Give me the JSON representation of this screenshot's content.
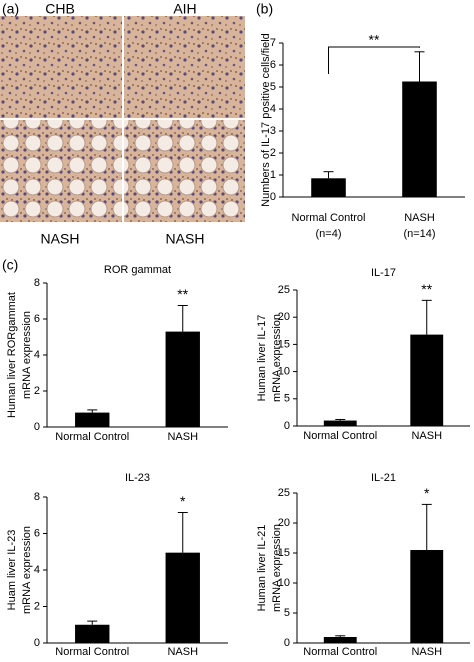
{
  "panel_labels": [
    "(a)",
    "(b)",
    "(c)"
  ],
  "micrographs": {
    "labels": [
      "CHB",
      "AIH",
      "NASH",
      "NASH"
    ]
  },
  "chart_data": [
    {
      "type": "bar",
      "ylabel": [
        "Numbers of IL-17 positive cells/field"
      ],
      "categories": [
        "Normal Control",
        "NASH"
      ],
      "category_notes": [
        "(n=4)",
        "(n=14)"
      ],
      "values": [
        0.85,
        5.25
      ],
      "errors": [
        0.3,
        1.35
      ],
      "significance": "**",
      "color": "#000000",
      "ylim": [
        0,
        7
      ],
      "yticks": [
        0,
        1,
        2,
        3,
        4,
        5,
        6,
        7
      ]
    },
    {
      "type": "bar",
      "title": "ROR gammat",
      "ylabel": [
        "Human liver RORgammat",
        "mRNA expression"
      ],
      "categories": [
        "Normal Control",
        "NASH"
      ],
      "values": [
        0.8,
        5.3
      ],
      "errors": [
        0.15,
        1.45
      ],
      "significance": "**",
      "color": "#000000",
      "ylim": [
        0,
        8
      ],
      "yticks": [
        0,
        2,
        4,
        6,
        8
      ]
    },
    {
      "type": "bar",
      "title": "IL-17",
      "ylabel": [
        "Human liver IL-17",
        "mRNA expression"
      ],
      "categories": [
        "Normal Control",
        "NASH"
      ],
      "values": [
        1.0,
        16.8
      ],
      "errors": [
        0.2,
        6.3
      ],
      "significance": "**",
      "color": "#000000",
      "ylim": [
        0,
        25
      ],
      "yticks": [
        0,
        5,
        10,
        15,
        20,
        25
      ]
    },
    {
      "type": "bar",
      "title": "IL-23",
      "ylabel": [
        "Huam liver IL-23",
        "mRNA expression"
      ],
      "categories": [
        "Normal Control",
        "NASH"
      ],
      "values": [
        1.0,
        4.95
      ],
      "errors": [
        0.2,
        2.2
      ],
      "significance": "*",
      "color": "#000000",
      "ylim": [
        0,
        8
      ],
      "yticks": [
        0,
        2,
        4,
        6,
        8
      ]
    },
    {
      "type": "bar",
      "title": "IL-21",
      "ylabel": [
        "Human liver IL-21",
        "mRNA expression"
      ],
      "categories": [
        "Normal Control",
        "NASH"
      ],
      "values": [
        1.0,
        15.5
      ],
      "errors": [
        0.2,
        7.6
      ],
      "significance": "*",
      "color": "#000000",
      "ylim": [
        0,
        25
      ],
      "yticks": [
        0,
        5,
        10,
        15,
        20,
        25
      ]
    }
  ]
}
